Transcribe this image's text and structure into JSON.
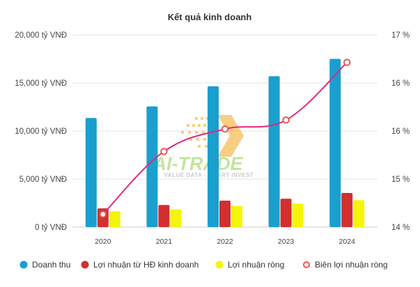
{
  "chart_data": {
    "type": "bar",
    "title": "Kết quả kinh doanh",
    "categories": [
      "2020",
      "2021",
      "2022",
      "2023",
      "2024"
    ],
    "series": [
      {
        "name": "Doanh thu",
        "kind": "bar",
        "axis": "left",
        "color": "#1a9fce",
        "values": [
          11350,
          12550,
          14650,
          15700,
          17500
        ]
      },
      {
        "name": "Lợi nhuận từ HĐ kinh doanh",
        "kind": "bar",
        "axis": "left",
        "color": "#d32f2f",
        "values": [
          1950,
          2300,
          2750,
          2950,
          3550
        ]
      },
      {
        "name": "Lợi nhuận ròng",
        "kind": "bar",
        "axis": "left",
        "color": "#f5f50a",
        "values": [
          1650,
          1850,
          2200,
          2450,
          2800
        ]
      },
      {
        "name": "Biên lợi nhuận ròng",
        "kind": "line",
        "axis": "right",
        "color": "#e0287d",
        "values": [
          14.2,
          15.18,
          15.53,
          15.67,
          16.57
        ]
      }
    ],
    "y_left": {
      "ylim": [
        0,
        20000
      ],
      "ticks": [
        0,
        5000,
        10000,
        15000,
        20000
      ],
      "tick_labels": [
        "0 tỷ VNĐ",
        "5,000 tỷ VNĐ",
        "10,000 tỷ VNĐ",
        "15,000 tỷ VNĐ",
        "20,000 tỷ VNĐ"
      ]
    },
    "y_right": {
      "ylim": [
        14,
        17
      ],
      "ticks": [
        14,
        14.75,
        15.5,
        16.25,
        17
      ],
      "tick_labels": [
        "14 %",
        "15 %",
        "16 %",
        "16 %",
        "17 %"
      ]
    },
    "grid": true,
    "legend": "bottom"
  },
  "watermark": {
    "text": "AI-TRADE",
    "tagline": "VALUE DATA - SMART INVEST"
  }
}
